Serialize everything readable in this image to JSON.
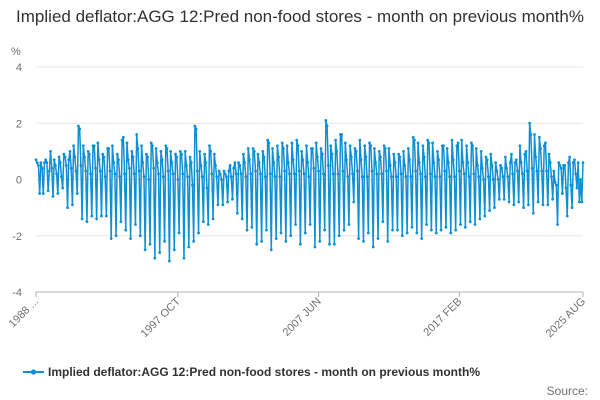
{
  "chart_data": {
    "type": "line",
    "title": "Implied deflator:AGG 12:Pred non-food stores - month on previous month%",
    "ylabel": "%",
    "ylim": [
      -4,
      4
    ],
    "yticks": [
      -4,
      -2,
      0,
      2,
      4
    ],
    "xlim": [
      "1988 JAN",
      "2025 AUG"
    ],
    "xticks": [
      "1988 ...",
      "1997 OCT",
      "2007 JUN",
      "2017 FEB",
      "2025 AUG"
    ],
    "grid": "horizontal",
    "legend_position": "bottom",
    "color": "#0f8fd4",
    "series": [
      {
        "name": "Implied deflator:AGG 12:Pred non-food stores - month on previous month%",
        "values_by_year": [
          {
            "year": 1988,
            "values": [
              0.7,
              0.6,
              0.5,
              -0.5,
              0.6,
              0.4,
              -0.5,
              0.6,
              0.7,
              0.6,
              -0.4,
              0.3
            ]
          },
          {
            "year": 1989,
            "values": [
              1.0,
              0.4,
              -0.6,
              0.7,
              0.5,
              0.2,
              -0.5,
              0.8,
              0.6,
              0.1,
              -0.3,
              0.9
            ]
          },
          {
            "year": 1990,
            "values": [
              0.8,
              0.5,
              -1.0,
              0.7,
              1.0,
              0.4,
              -0.9,
              1.2,
              0.8,
              0.3,
              -0.5,
              1.9
            ]
          },
          {
            "year": 1991,
            "values": [
              1.8,
              0.5,
              -1.4,
              1.2,
              0.8,
              0.3,
              -1.5,
              1.0,
              0.9,
              0.2,
              -1.3,
              1.2
            ]
          },
          {
            "year": 1992,
            "values": [
              1.2,
              0.4,
              -1.4,
              1.3,
              0.7,
              0.3,
              -1.3,
              0.9,
              0.8,
              0.1,
              -1.3,
              1.1
            ]
          },
          {
            "year": 1993,
            "values": [
              1.1,
              0.3,
              -2.1,
              1.2,
              0.6,
              0.2,
              -2.0,
              0.9,
              0.7,
              0.1,
              -1.5,
              1.4
            ]
          },
          {
            "year": 1994,
            "values": [
              1.5,
              0.2,
              -1.8,
              1.3,
              0.7,
              0.4,
              -2.1,
              1.0,
              0.8,
              0.2,
              -1.6,
              1.6
            ]
          },
          {
            "year": 1995,
            "values": [
              1.1,
              0.3,
              -2.0,
              1.2,
              0.6,
              0.1,
              -2.5,
              0.9,
              0.8,
              0.0,
              -2.3,
              1.3
            ]
          },
          {
            "year": 1996,
            "values": [
              1.2,
              0.4,
              -2.8,
              1.1,
              0.6,
              0.2,
              -2.6,
              1.0,
              0.7,
              0.1,
              -2.2,
              1.2
            ]
          },
          {
            "year": 1997,
            "values": [
              1.1,
              0.3,
              -2.9,
              1.0,
              0.6,
              0.2,
              -2.5,
              0.9,
              0.8,
              0.0,
              -1.9,
              1.0
            ]
          },
          {
            "year": 1998,
            "values": [
              0.9,
              0.2,
              -2.8,
              1.0,
              0.5,
              0.1,
              -2.4,
              0.8,
              0.6,
              -0.2,
              -2.2,
              1.9
            ]
          },
          {
            "year": 1999,
            "values": [
              1.8,
              0.3,
              -1.9,
              1.0,
              0.5,
              0.1,
              -1.5,
              0.9,
              0.6,
              -0.3,
              -1.6,
              1.2
            ]
          },
          {
            "year": 2000,
            "values": [
              1.0,
              0.2,
              -1.4,
              0.9,
              0.5,
              0.1,
              -0.9,
              0.3,
              0.2,
              0.0,
              -0.9,
              0.3
            ]
          },
          {
            "year": 2001,
            "values": [
              0.2,
              0.1,
              -0.8,
              0.3,
              0.5,
              0.1,
              -0.7,
              0.4,
              0.6,
              0.2,
              -1.2,
              0.6
            ]
          },
          {
            "year": 2002,
            "values": [
              0.5,
              0.2,
              -1.4,
              0.9,
              0.6,
              0.1,
              -1.8,
              1.1,
              0.7,
              0.2,
              -1.7,
              1.1
            ]
          },
          {
            "year": 2003,
            "values": [
              1.0,
              0.3,
              -2.3,
              0.9,
              0.6,
              0.2,
              -2.2,
              1.0,
              0.8,
              0.1,
              -1.8,
              1.4
            ]
          },
          {
            "year": 2004,
            "values": [
              1.3,
              0.2,
              -2.5,
              1.1,
              0.6,
              0.1,
              -2.1,
              1.2,
              0.8,
              0.1,
              -1.9,
              1.3
            ]
          },
          {
            "year": 2005,
            "values": [
              1.1,
              0.3,
              -2.2,
              1.2,
              0.6,
              0.2,
              -2.0,
              1.3,
              0.7,
              0.2,
              -1.6,
              1.4
            ]
          },
          {
            "year": 2006,
            "values": [
              1.2,
              0.3,
              -2.3,
              1.0,
              0.7,
              0.2,
              -1.9,
              1.2,
              0.6,
              0.1,
              -1.6,
              1.1
            ]
          },
          {
            "year": 2007,
            "values": [
              1.1,
              0.4,
              -2.4,
              1.3,
              0.8,
              0.3,
              -2.2,
              1.1,
              0.9,
              0.2,
              -1.8,
              2.1
            ]
          },
          {
            "year": 2008,
            "values": [
              1.9,
              0.5,
              -2.3,
              1.2,
              0.9,
              0.2,
              -2.3,
              1.4,
              1.0,
              0.2,
              -2.0,
              1.6
            ]
          },
          {
            "year": 2009,
            "values": [
              1.6,
              0.3,
              -1.8,
              1.3,
              0.7,
              0.1,
              -1.6,
              1.2,
              0.8,
              0.2,
              -0.8,
              1.1
            ]
          },
          {
            "year": 2010,
            "values": [
              1.0,
              0.3,
              -2.1,
              1.4,
              0.7,
              0.1,
              -2.2,
              1.2,
              0.8,
              0.1,
              -1.9,
              1.3
            ]
          },
          {
            "year": 2011,
            "values": [
              1.2,
              0.3,
              -2.4,
              1.1,
              0.6,
              0.2,
              -2.1,
              1.0,
              0.8,
              0.2,
              -1.5,
              1.2
            ]
          },
          {
            "year": 2012,
            "values": [
              1.1,
              0.3,
              -2.2,
              1.1,
              0.5,
              0.1,
              -1.8,
              0.9,
              0.6,
              0.1,
              -1.8,
              0.9
            ]
          },
          {
            "year": 2013,
            "values": [
              0.8,
              0.2,
              -2.0,
              1.0,
              0.5,
              0.1,
              -1.9,
              1.1,
              0.7,
              0.1,
              -1.7,
              1.5
            ]
          },
          {
            "year": 2014,
            "values": [
              1.4,
              0.3,
              -1.9,
              1.3,
              0.6,
              0.2,
              -2.1,
              1.2,
              0.8,
              0.1,
              -1.6,
              1.4
            ]
          },
          {
            "year": 2015,
            "values": [
              1.3,
              0.2,
              -1.8,
              1.3,
              0.6,
              0.1,
              -1.9,
              1.0,
              0.7,
              0.1,
              -1.8,
              1.2
            ]
          },
          {
            "year": 2016,
            "values": [
              1.2,
              0.3,
              -1.7,
              1.1,
              0.6,
              0.1,
              -1.9,
              1.4,
              0.7,
              0.1,
              -1.8,
              1.2
            ]
          },
          {
            "year": 2017,
            "values": [
              1.3,
              0.3,
              -1.6,
              1.4,
              0.6,
              0.2,
              -1.7,
              1.2,
              0.6,
              0.1,
              -1.5,
              1.3
            ]
          },
          {
            "year": 2018,
            "values": [
              1.2,
              0.2,
              -1.6,
              1.1,
              0.5,
              0.1,
              -1.4,
              1.0,
              0.4,
              0.0,
              -1.3,
              0.8
            ]
          },
          {
            "year": 2019,
            "values": [
              0.7,
              0.1,
              -1.1,
              0.9,
              0.5,
              0.0,
              -1.0,
              0.6,
              0.3,
              0.0,
              -0.7,
              0.5
            ]
          },
          {
            "year": 2020,
            "values": [
              0.4,
              0.1,
              -0.7,
              0.8,
              0.4,
              0.1,
              -0.8,
              0.6,
              0.9,
              0.2,
              -0.9,
              0.6
            ]
          },
          {
            "year": 2021,
            "values": [
              0.7,
              0.3,
              -0.8,
              1.2,
              0.6,
              0.2,
              -1.0,
              0.9,
              1.0,
              0.3,
              -0.9,
              2.0
            ]
          },
          {
            "year": 2022,
            "values": [
              1.6,
              0.4,
              -1.2,
              1.6,
              0.8,
              0.3,
              -0.8,
              1.5,
              1.1,
              0.3,
              -0.9,
              1.2
            ]
          },
          {
            "year": 2023,
            "values": [
              1.3,
              0.3,
              -0.9,
              0.9,
              0.6,
              0.1,
              -0.7,
              0.3,
              -0.1,
              -0.2,
              -1.6,
              0.6
            ]
          },
          {
            "year": 2024,
            "values": [
              0.5,
              0.4,
              -0.5,
              0.5,
              0.5,
              -0.3,
              -1.3,
              0.6,
              0.8,
              -0.2,
              -1.0,
              0.6
            ]
          },
          {
            "year": 2025,
            "values": [
              0.7,
              0.2,
              -0.3,
              0.6,
              -0.8,
              0.0,
              -0.8,
              0.6
            ]
          }
        ]
      }
    ],
    "source_label": "Source:"
  }
}
